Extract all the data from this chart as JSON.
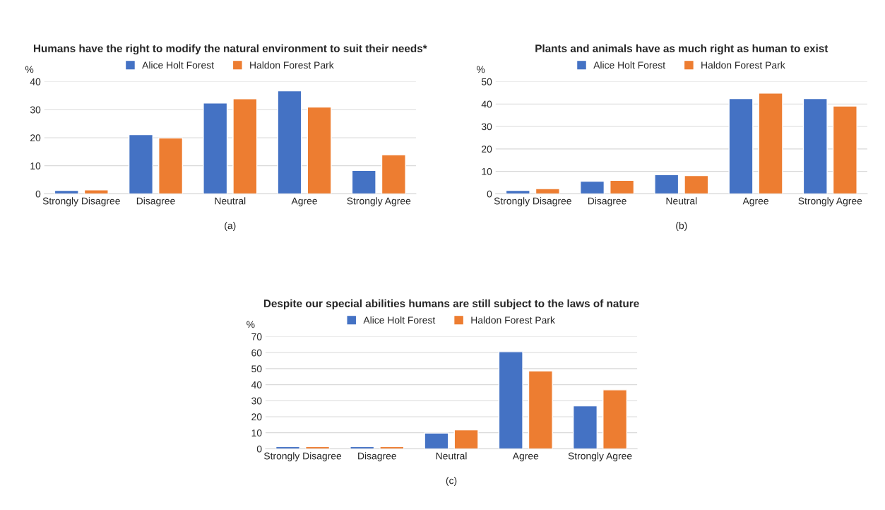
{
  "chart_data": [
    {
      "type": "bar",
      "title": "Humans have the right to modify the natural environment to suit their needs*",
      "ylabel": "%",
      "categories": [
        "Strongly Disagree",
        "Disagree",
        "Neutral",
        "Agree",
        "Strongly Agree"
      ],
      "series": [
        {
          "name": "Alice Holt Forest",
          "color": "#4472c4",
          "values": [
            1.2,
            21.1,
            32.4,
            36.7,
            8.3
          ]
        },
        {
          "name": "Haldon Forest Park",
          "color": "#ed7d31",
          "values": [
            1.4,
            19.9,
            33.9,
            30.9,
            13.9
          ]
        }
      ],
      "ylim": [
        0,
        40
      ],
      "yticks": [
        0,
        10,
        20,
        30,
        40
      ],
      "grid": "y",
      "legend": "top",
      "annotations": [
        "(a)"
      ]
    },
    {
      "type": "bar",
      "title": "Plants and animals have as much right as human to exist",
      "ylabel": "%",
      "categories": [
        "Strongly Disagree",
        "Disagree",
        "Neutral",
        "Agree",
        "Strongly Agree"
      ],
      "series": [
        {
          "name": "Alice Holt Forest",
          "color": "#4472c4",
          "values": [
            1.5,
            5.6,
            8.5,
            42.4,
            42.4
          ]
        },
        {
          "name": "Haldon Forest Park",
          "color": "#ed7d31",
          "values": [
            2.3,
            6.0,
            8.1,
            44.9,
            39.1
          ]
        }
      ],
      "ylim": [
        0,
        50
      ],
      "yticks": [
        0,
        10,
        20,
        30,
        40,
        50
      ],
      "grid": "y",
      "legend": "top",
      "annotations": [
        "(b)"
      ]
    },
    {
      "type": "bar",
      "title": "Despite our special abilities humans are still subject to the laws of nature",
      "ylabel": "%",
      "categories": [
        "Strongly Disagree",
        "Disagree",
        "Neutral",
        "Agree",
        "Strongly Agree"
      ],
      "series": [
        {
          "name": "Alice Holt Forest",
          "color": "#4472c4",
          "values": [
            1.4,
            1.4,
            9.8,
            60.6,
            26.8
          ]
        },
        {
          "name": "Haldon Forest Park",
          "color": "#ed7d31",
          "values": [
            1.4,
            1.4,
            11.8,
            48.6,
            36.8
          ]
        }
      ],
      "ylim": [
        0,
        70
      ],
      "yticks": [
        0,
        10,
        20,
        30,
        40,
        50,
        60,
        70
      ],
      "grid": "y",
      "legend": "top",
      "annotations": [
        "(c)"
      ]
    }
  ]
}
